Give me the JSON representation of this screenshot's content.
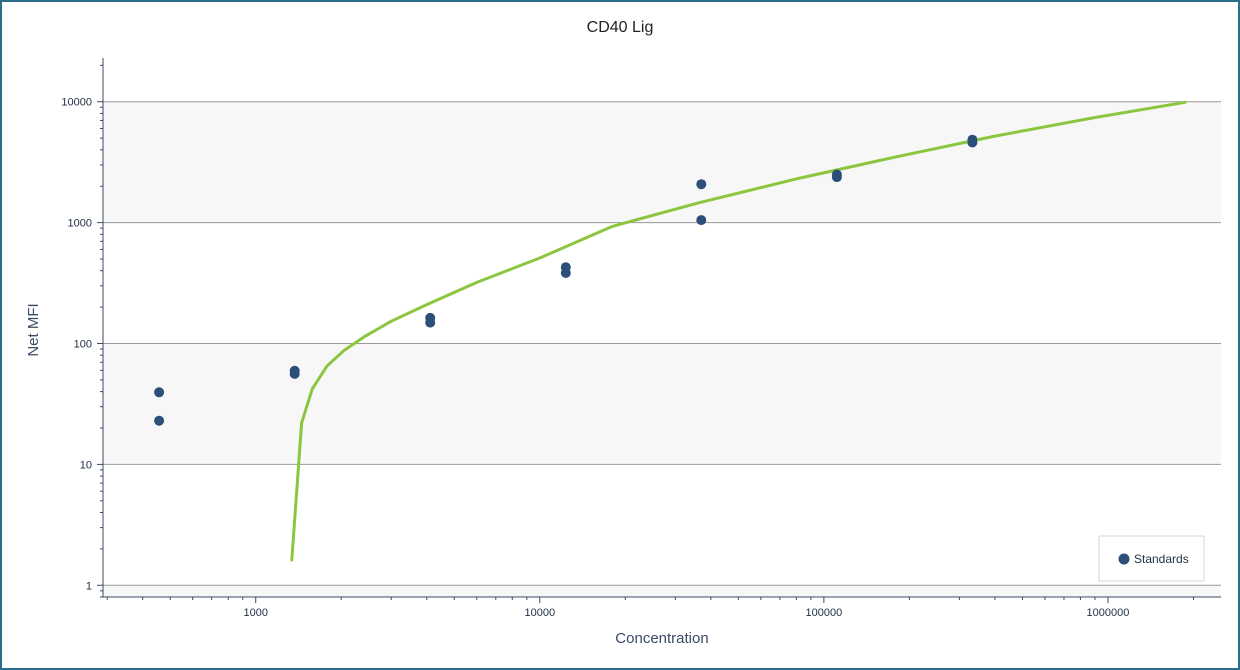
{
  "chart_data": {
    "type": "scatter",
    "title": "CD40 Lig",
    "xlabel": "Concentration",
    "ylabel": "Net MFI",
    "x_scale": "log",
    "y_scale": "log",
    "xlim": [
      290,
      2500000
    ],
    "ylim": [
      0.8,
      23000
    ],
    "x_ticks": [
      1000,
      10000,
      100000,
      1000000
    ],
    "x_tick_labels": [
      "1000",
      "10000",
      "100000",
      "1000000"
    ],
    "y_ticks": [
      1,
      10,
      100,
      1000,
      10000
    ],
    "y_tick_labels": [
      "1",
      "10",
      "100",
      "1000",
      "10000"
    ],
    "grid": true,
    "legend_position": "bottom-right",
    "series": [
      {
        "name": "Standards",
        "type": "scatter",
        "color": "#2b4f78",
        "points": [
          {
            "x": 457,
            "y": 39.5
          },
          {
            "x": 457,
            "y": 23
          },
          {
            "x": 1372,
            "y": 59.5
          },
          {
            "x": 1372,
            "y": 56
          },
          {
            "x": 4115,
            "y": 163
          },
          {
            "x": 4115,
            "y": 149
          },
          {
            "x": 12346,
            "y": 428
          },
          {
            "x": 12346,
            "y": 383
          },
          {
            "x": 37037,
            "y": 2080
          },
          {
            "x": 37037,
            "y": 1050
          },
          {
            "x": 111111,
            "y": 2500
          },
          {
            "x": 111111,
            "y": 2380
          },
          {
            "x": 333333,
            "y": 4850
          },
          {
            "x": 333333,
            "y": 4600
          }
        ]
      },
      {
        "type": "line",
        "color": "#8cc63f",
        "points": [
          {
            "x": 1340,
            "y": 1.62
          },
          {
            "x": 1450,
            "y": 22
          },
          {
            "x": 1580,
            "y": 42
          },
          {
            "x": 1780,
            "y": 65
          },
          {
            "x": 2050,
            "y": 88
          },
          {
            "x": 2400,
            "y": 113
          },
          {
            "x": 3000,
            "y": 153
          },
          {
            "x": 4000,
            "y": 210
          },
          {
            "x": 6000,
            "y": 320
          },
          {
            "x": 10000,
            "y": 510
          },
          {
            "x": 18000,
            "y": 930
          },
          {
            "x": 36000,
            "y": 1450
          },
          {
            "x": 80000,
            "y": 2300
          },
          {
            "x": 180000,
            "y": 3500
          },
          {
            "x": 400000,
            "y": 5200
          },
          {
            "x": 900000,
            "y": 7400
          },
          {
            "x": 1870000,
            "y": 9900
          }
        ]
      }
    ]
  }
}
